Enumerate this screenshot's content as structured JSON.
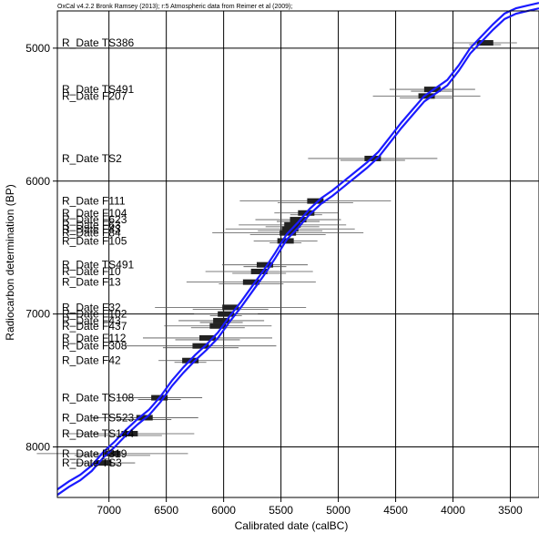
{
  "header": {
    "text": "OxCal v4.2.2 Bronk Ramsey (2013); r:5 Atmospheric data from Reimer et al (2009);"
  },
  "chart_data": {
    "type": "line",
    "xlabel": "Calibrated date (calBC)",
    "ylabel": "Radiocarbon determination (BP)",
    "xlim": [
      7450,
      3250
    ],
    "ylim": [
      8380,
      4720
    ],
    "x_ticks": [
      7000,
      6500,
      6000,
      5500,
      5000,
      4500,
      4000,
      3500
    ],
    "y_ticks": [
      5000,
      6000,
      7000,
      8000
    ],
    "grid": true,
    "calibration_curve": {
      "color": "#1a1aff",
      "x": [
        7450,
        7350,
        7250,
        7150,
        7050,
        6950,
        6850,
        6750,
        6650,
        6550,
        6450,
        6350,
        6250,
        6150,
        6050,
        5950,
        5850,
        5750,
        5650,
        5550,
        5450,
        5350,
        5250,
        5150,
        5050,
        4950,
        4850,
        4750,
        4650,
        4550,
        4450,
        4350,
        4250,
        4150,
        4050,
        3950,
        3850,
        3750,
        3650,
        3550,
        3450,
        3350,
        3250
      ],
      "y": [
        8340,
        8280,
        8230,
        8160,
        8060,
        7980,
        7890,
        7810,
        7740,
        7640,
        7520,
        7420,
        7330,
        7250,
        7160,
        7040,
        6930,
        6810,
        6690,
        6560,
        6420,
        6330,
        6230,
        6150,
        6090,
        6020,
        5950,
        5880,
        5800,
        5690,
        5580,
        5480,
        5380,
        5320,
        5260,
        5150,
        5020,
        4930,
        4840,
        4760,
        4720,
        4700,
        4680
      ]
    },
    "dates": [
      {
        "name": "R_Date TS386",
        "bp": 4960,
        "cal": 3720
      },
      {
        "name": "R_Date TS491",
        "bp": 5310,
        "cal": 4180
      },
      {
        "name": "R_Date F207",
        "bp": 5360,
        "cal": 4230
      },
      {
        "name": "R_Date TS2",
        "bp": 5830,
        "cal": 4700
      },
      {
        "name": "R_Date F111",
        "bp": 6150,
        "cal": 5200
      },
      {
        "name": "R_Date F104",
        "bp": 6240,
        "cal": 5280
      },
      {
        "name": "R_Date F623",
        "bp": 6290,
        "cal": 5350
      },
      {
        "name": "R_Date F63",
        "bp": 6330,
        "cal": 5400
      },
      {
        "name": "R_Date F43",
        "bp": 6360,
        "cal": 5420
      },
      {
        "name": "R_Date F84",
        "bp": 6390,
        "cal": 5440
      },
      {
        "name": "R_Date F105",
        "bp": 6450,
        "cal": 5460
      },
      {
        "name": "R_Date TS491",
        "bp": 6630,
        "cal": 5640
      },
      {
        "name": "R_Date F10",
        "bp": 6680,
        "cal": 5690
      },
      {
        "name": "R_Date F13",
        "bp": 6760,
        "cal": 5760
      },
      {
        "name": "R_Date F32",
        "bp": 6950,
        "cal": 5940
      },
      {
        "name": "R_Date F102",
        "bp": 7000,
        "cal": 5980
      },
      {
        "name": "R_Date F43",
        "bp": 7050,
        "cal": 6020
      },
      {
        "name": "R_Date F437",
        "bp": 7090,
        "cal": 6050
      },
      {
        "name": "R_Date F112",
        "bp": 7180,
        "cal": 6140
      },
      {
        "name": "R_Date F308",
        "bp": 7240,
        "cal": 6200
      },
      {
        "name": "R_Date F42",
        "bp": 7350,
        "cal": 6290
      },
      {
        "name": "R_Date TS108",
        "bp": 7630,
        "cal": 6560
      },
      {
        "name": "R_Date TS523",
        "bp": 7780,
        "cal": 6690
      },
      {
        "name": "R_Date TS144",
        "bp": 7900,
        "cal": 6820
      },
      {
        "name": "R_Date F319",
        "bp": 8050,
        "cal": 6970
      },
      {
        "name": "R_Date TS3",
        "bp": 8120,
        "cal": 7050
      }
    ]
  }
}
